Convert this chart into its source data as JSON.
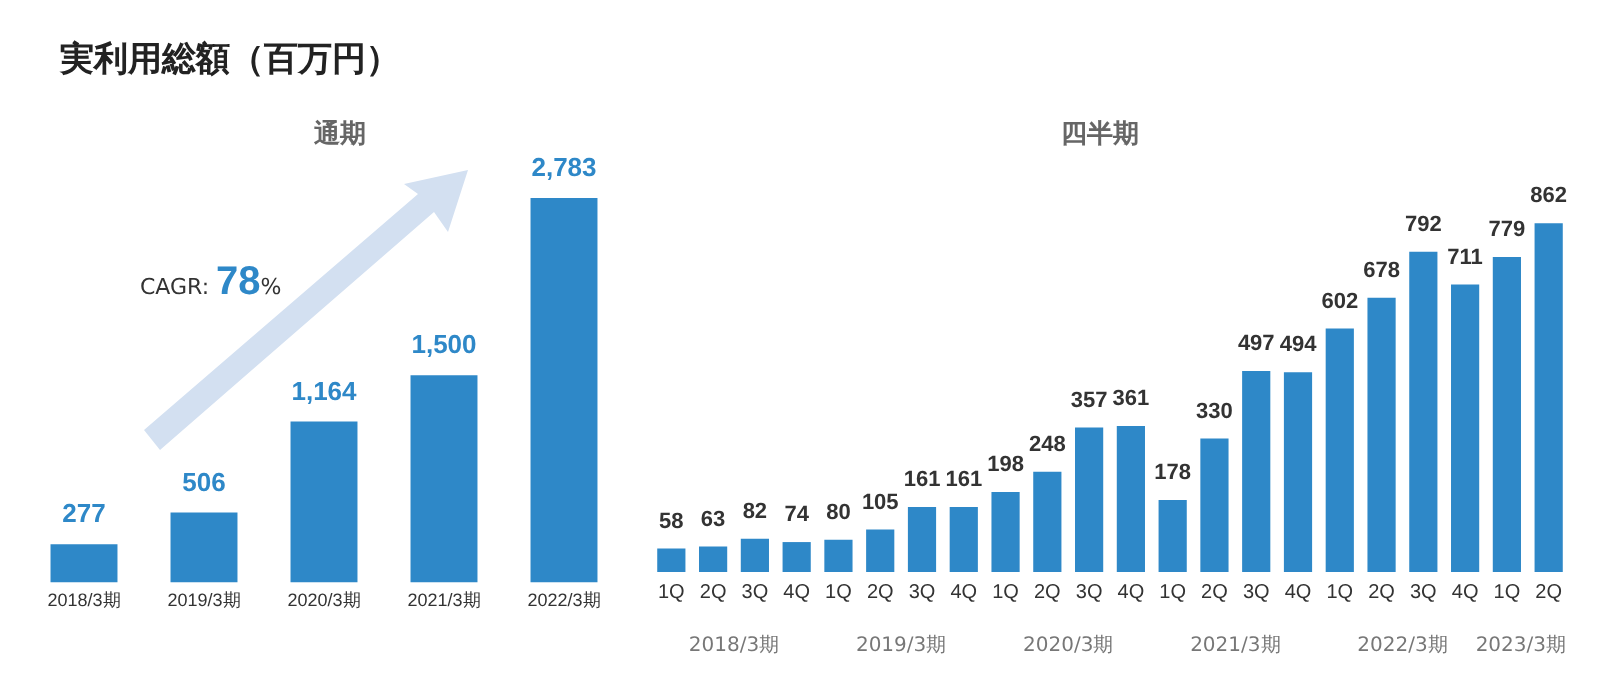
{
  "chart_data": [
    {
      "type": "bar",
      "title": "実利用総額（百万円）",
      "subtitle": "通期",
      "categories": [
        "2018/3期",
        "2019/3期",
        "2020/3期",
        "2021/3期",
        "2022/3期"
      ],
      "values": [
        277,
        506,
        1164,
        1500,
        2783
      ],
      "value_labels": [
        "277",
        "506",
        "1,164",
        "1,500",
        "2,783"
      ],
      "color": "#2e88c8",
      "grid": false,
      "legend": false,
      "annotations": [
        "CAGR: 78%"
      ]
    },
    {
      "type": "bar",
      "title": "四半期",
      "categories": [
        "1Q",
        "2Q",
        "3Q",
        "4Q",
        "1Q",
        "2Q",
        "3Q",
        "4Q",
        "1Q",
        "2Q",
        "3Q",
        "4Q",
        "1Q",
        "2Q",
        "3Q",
        "4Q",
        "1Q",
        "2Q",
        "3Q",
        "4Q",
        "1Q",
        "2Q"
      ],
      "values": [
        58,
        63,
        82,
        74,
        80,
        105,
        161,
        161,
        198,
        248,
        357,
        361,
        178,
        330,
        497,
        494,
        602,
        678,
        792,
        711,
        779,
        862
      ],
      "color": "#2e88c8",
      "data_labels": true,
      "grid": false,
      "legend": false,
      "annotations": [
        "2018/3期",
        "2019/3期",
        "2020/3期",
        "2021/3期",
        "2022/3期",
        "2023/3期"
      ]
    }
  ]
}
